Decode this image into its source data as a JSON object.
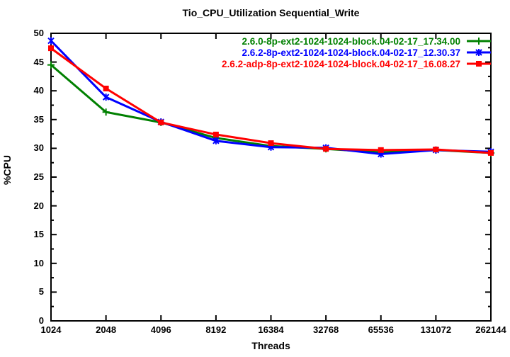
{
  "chart_data": {
    "type": "line",
    "title": "Tio_CPU_Utilization Sequential_Write",
    "xlabel": "Threads",
    "ylabel": "%CPU",
    "x_scale": "log2",
    "categories": [
      1024,
      2048,
      4096,
      8192,
      16384,
      32768,
      65536,
      131072,
      262144
    ],
    "ylim": [
      0,
      50
    ],
    "y_tick_step": 5,
    "y_minor_tick_step": 2.5,
    "grid": false,
    "legend_position": "top-right-inside",
    "axis_color": "#000000",
    "background_color": "#ffffff",
    "series": [
      {
        "name": "2.6.0-8p-ext2-1024-1024-block.04-02-17_17.34.00",
        "color": "#008000",
        "marker": "plus",
        "values": [
          44.5,
          36.3,
          34.5,
          31.8,
          30.4,
          29.9,
          29.3,
          29.7,
          29.2
        ]
      },
      {
        "name": "2.6.2-8p-ext2-1024-1024-block.04-02-17_12.30.37",
        "color": "#0000ff",
        "marker": "asterisk",
        "values": [
          48.7,
          38.9,
          34.6,
          31.3,
          30.2,
          30.1,
          29.0,
          29.7,
          29.4
        ]
      },
      {
        "name": "2.6.2-adp-8p-ext2-1024-1024-block.04-02-17_16.08.27",
        "color": "#ff0000",
        "marker": "square",
        "values": [
          47.4,
          40.4,
          34.5,
          32.4,
          30.9,
          29.9,
          29.7,
          29.8,
          29.2
        ]
      }
    ]
  }
}
